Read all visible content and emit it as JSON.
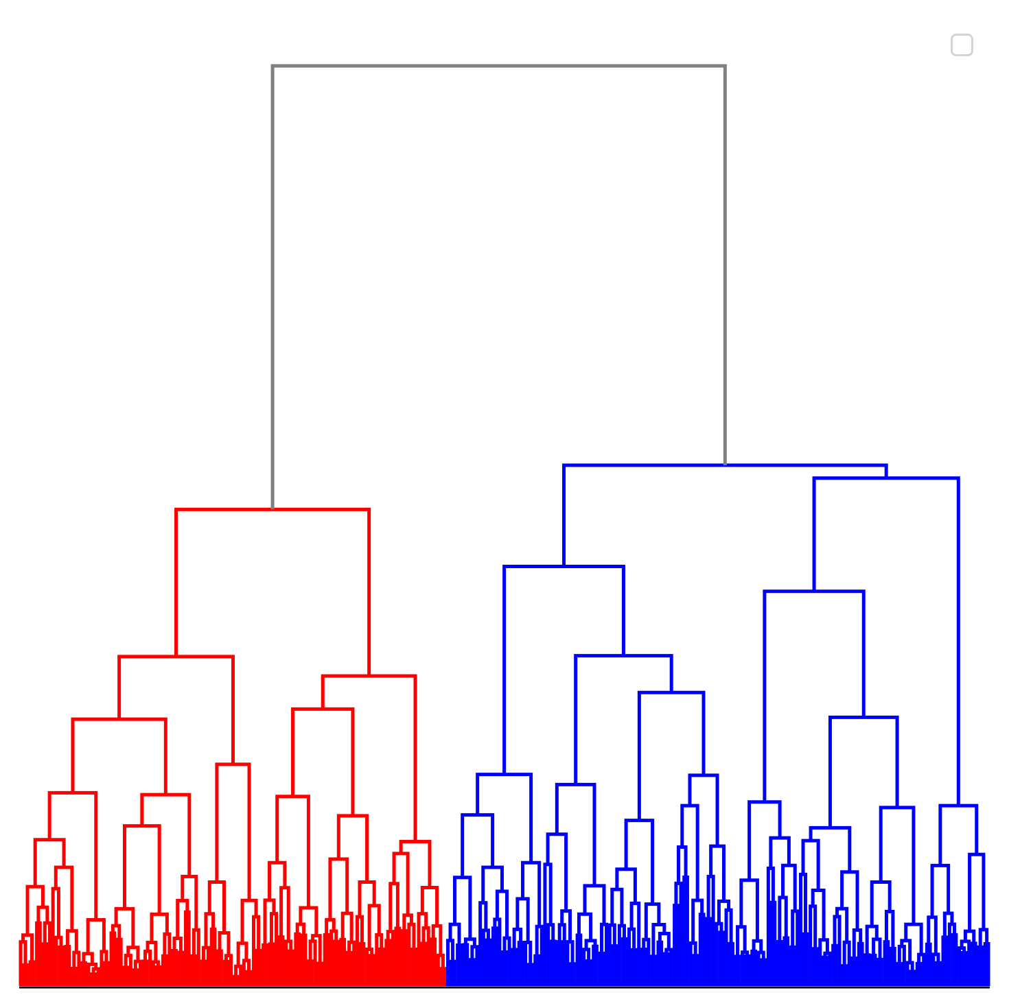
{
  "chart_data": {
    "type": "dendrogram",
    "title": "",
    "xlabel": "",
    "ylabel": "",
    "leaf_count": 300,
    "height_range": [
      0,
      100
    ],
    "colors": {
      "above_threshold": "#808080",
      "cluster_1": "#ff0000",
      "cluster_2": "#0000ff"
    },
    "clusters": [
      {
        "color": "#ff0000",
        "leaf_count": 132
      },
      {
        "color": "#0000ff",
        "leaf_count": 168
      }
    ],
    "root": {
      "height": 100,
      "left": "cluster_1",
      "right": "cluster_2"
    },
    "tree": {
      "cluster_1": {
        "height": 51.8,
        "children": [
          {
            "height": 35.8,
            "children": [
              {
                "height": 29.0,
                "children": [
                  {
                    "height": 21.0,
                    "children": [
                      {
                        "height": 15.9,
                        "children": [
                          {
                            "height": 10.8
                          },
                          {
                            "height": 12.9
                          }
                        ]
                      },
                      {
                        "height": 7.2
                      }
                    ]
                  },
                  {
                    "height": 20.8,
                    "children": [
                      {
                        "height": 17.4,
                        "children": [
                          {
                            "height": 8.4
                          },
                          {
                            "height": 7.8
                          }
                        ]
                      },
                      {
                        "height": 11.9
                      }
                    ]
                  }
                ]
              },
              {
                "height": 24.1,
                "children": [
                  {
                    "height": 11.3
                  },
                  {
                    "height": 9.3
                  }
                ]
              }
            ]
          },
          {
            "height": 33.7,
            "children": [
              {
                "height": 30.1,
                "children": [
                  {
                    "height": 20.6,
                    "children": [
                      {
                        "height": 13.4
                      },
                      {
                        "height": 8.5
                      }
                    ]
                  },
                  {
                    "height": 18.5,
                    "children": [
                      {
                        "height": 13.8
                      },
                      {
                        "height": 11.3
                      }
                    ]
                  }
                ]
              },
              {
                "height": 15.7,
                "children": [
                  {
                    "height": 14.4
                  },
                  {
                    "height": 10.7
                  }
                ]
              }
            ]
          }
        ]
      },
      "cluster_2": {
        "height": 56.6,
        "children": [
          {
            "height": 45.6,
            "children": [
              {
                "height": 23.0,
                "children": [
                  {
                    "height": 18.6,
                    "children": [
                      {
                        "height": 11.8
                      },
                      {
                        "height": 12.9
                      }
                    ]
                  },
                  {
                    "height": 13.4
                  }
                ]
              },
              {
                "height": 35.9,
                "children": [
                  {
                    "height": 21.9,
                    "children": [
                      {
                        "height": 16.5
                      },
                      {
                        "height": 10.9
                      }
                    ]
                  },
                  {
                    "height": 31.9,
                    "children": [
                      {
                        "height": 18.0,
                        "children": [
                          {
                            "height": 12.7
                          },
                          {
                            "height": 8.9
                          }
                        ]
                      },
                      {
                        "height": 22.9,
                        "children": [
                          {
                            "height": 19.6
                          },
                          {
                            "height": 15.2
                          }
                        ]
                      }
                    ]
                  }
                ]
              }
            ]
          },
          {
            "height": 55.2,
            "children": [
              {
                "height": 42.9,
                "children": [
                  {
                    "height": 20.0,
                    "children": [
                      {
                        "height": 11.5
                      },
                      {
                        "height": 16.1
                      }
                    ]
                  },
                  {
                    "height": 29.2,
                    "children": [
                      {
                        "height": 17.2,
                        "children": [
                          {
                            "height": 15.8
                          },
                          {
                            "height": 12.4
                          }
                        ]
                      },
                      {
                        "height": 19.4,
                        "children": [
                          {
                            "height": 11.3
                          },
                          {
                            "height": 6.7
                          }
                        ]
                      }
                    ]
                  }
                ]
              },
              {
                "height": 19.6,
                "children": [
                  {
                    "height": 13.1
                  },
                  {
                    "height": 14.3
                  }
                ]
              }
            ]
          }
        ]
      }
    },
    "legend": {
      "placement": "top-right",
      "entries": []
    },
    "grid": false
  }
}
